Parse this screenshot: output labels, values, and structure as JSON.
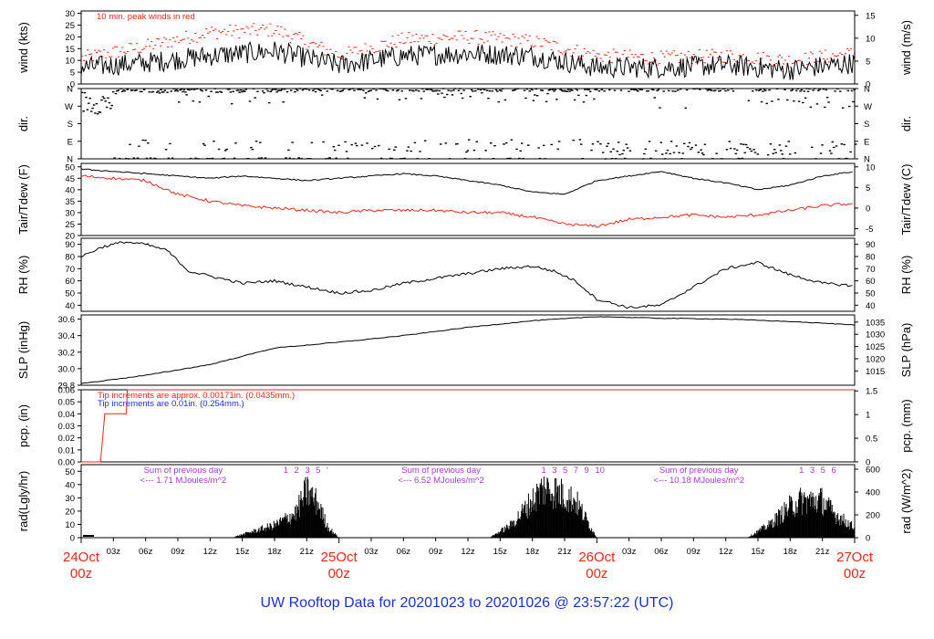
{
  "footer_title": "UW Rooftop Data for 20201023  to  20201026 @ 23:57:22  (UTC)",
  "colors": {
    "series": "#000000",
    "red": "#e8261a",
    "blue": "#1c2fd6",
    "purple": "#a040c8",
    "footer": "#1c2fd6"
  },
  "chart_data": [
    {
      "type": "line",
      "panel": "wind",
      "ylabel": "wind (kts)",
      "ylabel_right": "wind (m/s)",
      "yticks": [
        0,
        5,
        10,
        15,
        20,
        25,
        30
      ],
      "yticks_right": [
        0,
        5,
        10,
        15
      ],
      "ylim": [
        0,
        31
      ],
      "annotations": [
        "10 min. peak winds in red"
      ],
      "x_hours": [
        0,
        6,
        12,
        18,
        24,
        30,
        36,
        42,
        48,
        54,
        60,
        66,
        72
      ],
      "series": [
        {
          "role": "mean",
          "color": "#000000",
          "values": [
            7,
            9,
            12,
            14,
            8,
            12,
            13,
            12,
            7,
            7,
            8,
            6,
            9
          ]
        },
        {
          "role": "peak_10min",
          "color": "#e8261a",
          "values": [
            11,
            16,
            22,
            23,
            12,
            19,
            20,
            18,
            12,
            11,
            12,
            10,
            13
          ]
        }
      ]
    },
    {
      "type": "scatter",
      "panel": "direction",
      "ylabel": "dir.",
      "ylabel_right": "dir.",
      "yticks": [
        "N",
        "E",
        "S",
        "W",
        "N"
      ],
      "yticks_values": [
        0,
        90,
        180,
        270,
        360
      ],
      "ylim": [
        0,
        360
      ]
    },
    {
      "type": "line",
      "panel": "temperature",
      "ylabel": "Tair/Tdew (F)",
      "ylabel_right": "Tair/Tdew (C)",
      "yticks": [
        20,
        25,
        30,
        35,
        40,
        45,
        50
      ],
      "yticks_right": [
        -5,
        0,
        5,
        10
      ],
      "ylim": [
        20,
        51.5
      ],
      "x_hours": [
        0,
        3,
        6,
        9,
        12,
        15,
        18,
        21,
        24,
        27,
        30,
        33,
        36,
        39,
        42,
        45,
        48,
        51,
        54,
        57,
        60,
        63,
        66,
        69,
        72
      ],
      "series": [
        {
          "name": "Tair",
          "color": "#000000",
          "values": [
            49,
            48,
            47,
            46,
            45,
            46,
            45,
            44,
            45,
            46,
            47,
            46,
            44,
            42,
            39,
            38,
            44,
            46,
            48,
            45,
            43,
            40,
            42,
            46,
            48
          ]
        },
        {
          "name": "Tdew",
          "color": "#e8261a",
          "values": [
            46,
            45,
            44,
            38,
            35,
            33,
            32,
            31,
            30,
            31,
            31,
            31,
            30,
            30,
            28,
            25,
            24,
            27,
            28,
            29,
            28,
            29,
            31,
            33,
            34
          ]
        }
      ]
    },
    {
      "type": "line",
      "panel": "humidity",
      "ylabel": "RH (%)",
      "ylabel_right": "RH (%)",
      "yticks": [
        40,
        50,
        60,
        70,
        80,
        90
      ],
      "yticks_right": [
        40,
        50,
        60,
        70,
        80,
        90
      ],
      "ylim": [
        35,
        95
      ],
      "x_hours": [
        0,
        2,
        4,
        6,
        8,
        10,
        12,
        15,
        18,
        21,
        24,
        27,
        30,
        33,
        36,
        39,
        42,
        44,
        46,
        48,
        51,
        54,
        57,
        60,
        63,
        66,
        69,
        72
      ],
      "series": [
        {
          "name": "RH",
          "color": "#000000",
          "values": [
            80,
            88,
            92,
            90,
            85,
            68,
            64,
            58,
            60,
            55,
            50,
            52,
            58,
            62,
            66,
            70,
            72,
            68,
            60,
            45,
            38,
            40,
            55,
            70,
            75,
            65,
            58,
            56
          ]
        }
      ]
    },
    {
      "type": "line",
      "panel": "pressure",
      "ylabel": "SLP (inHg)",
      "ylabel_right": "SLP (hPa)",
      "yticks": [
        29.8,
        30.0,
        30.2,
        30.4,
        30.6
      ],
      "yticks_right": [
        1015,
        1020,
        1025,
        1030,
        1035
      ],
      "ylim": [
        29.8,
        30.65
      ],
      "x_hours": [
        0,
        6,
        12,
        18,
        24,
        30,
        36,
        42,
        48,
        54,
        60,
        66,
        72
      ],
      "series": [
        {
          "name": "SLP",
          "color": "#000000",
          "values": [
            29.82,
            29.92,
            30.05,
            30.25,
            30.32,
            30.4,
            30.5,
            30.58,
            30.63,
            30.61,
            30.6,
            30.57,
            30.53
          ]
        }
      ]
    },
    {
      "type": "line",
      "panel": "precipitation",
      "ylabel": "pcp. (in)",
      "ylabel_right": "pcp. (mm)",
      "yticks": [
        0,
        0.01,
        0.02,
        0.03,
        0.04,
        0.05,
        0.06
      ],
      "yticks_right": [
        0,
        0.5,
        1,
        1.5
      ],
      "ylim": [
        0,
        0.06
      ],
      "annotations": [
        {
          "text": "Tip increments are approx. 0.00171in. (0.0435mm.)",
          "color": "#e8261a"
        },
        {
          "text": "Tip increments are 0.01in. (0.254mm.)",
          "color": "#1c2fd6"
        }
      ],
      "x_hours": [
        0,
        1.8,
        2.2,
        4.2,
        4.3,
        72
      ],
      "series": [
        {
          "name": "pcp",
          "color": "#e8261a",
          "values": [
            0,
            0,
            0.04,
            0.04,
            0.06,
            0.06
          ]
        }
      ]
    },
    {
      "type": "area",
      "panel": "radiation",
      "ylabel": "rad(Lgly/hr)",
      "ylabel_right": "rad (W/m^2)",
      "yticks": [
        0,
        10,
        20,
        30,
        40,
        50
      ],
      "yticks_right": [
        0,
        200,
        400,
        600
      ],
      "ylim": [
        0,
        55
      ],
      "annotations": [
        {
          "text": "Sum of previous day",
          "value": "<--- 1.71 MJoules/m^2",
          "color": "#a040c8"
        },
        {
          "text": "Sum of previous day",
          "value": "<--- 6.52 MJoules/m^2",
          "color": "#a040c8"
        },
        {
          "text": "Sum of previous day",
          "value": "<--- 10.18 MJoules/m^2",
          "color": "#a040c8"
        }
      ],
      "hour_markers": [
        [
          "1",
          "2",
          "3",
          "5",
          "'"
        ],
        [
          "1",
          "3",
          "5",
          "7",
          "9",
          "10"
        ],
        [
          "1",
          "3",
          "5",
          "6"
        ]
      ],
      "x_hours": [
        0,
        14,
        16,
        18,
        20,
        21,
        22,
        23,
        24,
        38,
        40,
        42,
        43,
        44,
        46,
        48,
        62,
        64,
        66,
        67,
        69,
        70,
        72
      ],
      "series": [
        {
          "name": "radiation",
          "color": "#000000",
          "values": [
            0,
            0,
            5,
            10,
            20,
            38,
            28,
            8,
            0,
            0,
            10,
            30,
            40,
            38,
            30,
            0,
            0,
            10,
            25,
            30,
            30,
            20,
            8
          ]
        }
      ]
    }
  ],
  "x_axis": {
    "hour_ticks": [
      "03z",
      "06z",
      "09z",
      "12z",
      "15z",
      "18z",
      "21z",
      "03z",
      "06z",
      "09z",
      "12z",
      "15z",
      "18z",
      "21z",
      "03z",
      "06z",
      "09z",
      "12z",
      "15z",
      "18z",
      "21z"
    ],
    "hour_positions": [
      3,
      6,
      9,
      12,
      15,
      18,
      21,
      27,
      30,
      33,
      36,
      39,
      42,
      45,
      51,
      54,
      57,
      60,
      63,
      66,
      69
    ],
    "date_labels": [
      {
        "date": "24Oct",
        "zone": "00z",
        "hour": 0
      },
      {
        "date": "25Oct",
        "zone": "00z",
        "hour": 24
      },
      {
        "date": "26Oct",
        "zone": "00z",
        "hour": 48
      },
      {
        "date": "27Oct",
        "zone": "00z",
        "hour": 72
      }
    ]
  }
}
